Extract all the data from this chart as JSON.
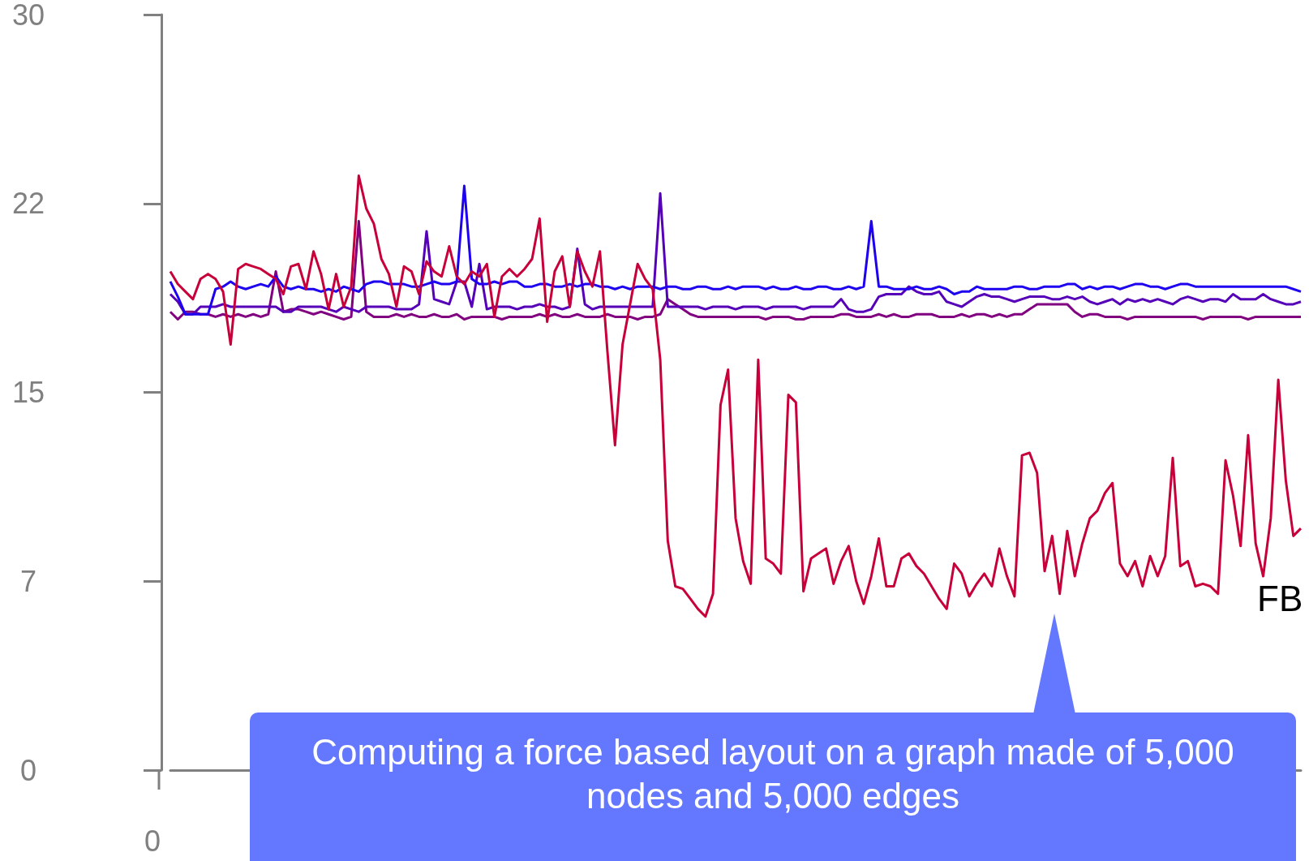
{
  "chart_data": {
    "type": "line",
    "categories": [
      null,
      null,
      null,
      null,
      null,
      null,
      null,
      null,
      null,
      null,
      null,
      null,
      null,
      null,
      null,
      null,
      null,
      null,
      null,
      null,
      null,
      null,
      null,
      null,
      null,
      null,
      null,
      null,
      null,
      null,
      null,
      null,
      null,
      null,
      null,
      null,
      null,
      null,
      null,
      null,
      null,
      null,
      null,
      null,
      null,
      null,
      null,
      null,
      null,
      null,
      null,
      null,
      null,
      null,
      null,
      null,
      null,
      null,
      null,
      null,
      null,
      null,
      null,
      null,
      null,
      null,
      null,
      null,
      null,
      null,
      null,
      null,
      null,
      null,
      null,
      null,
      null,
      null,
      null,
      null,
      null,
      null,
      null,
      null,
      null,
      null,
      null,
      null,
      null,
      null,
      null,
      null,
      null,
      null,
      null,
      null,
      null,
      null,
      null,
      null,
      null,
      null,
      null,
      null,
      null,
      null,
      null,
      null,
      null,
      null,
      null,
      null,
      null,
      null,
      null,
      null,
      null,
      null,
      null,
      null,
      null,
      null,
      null,
      null,
      null,
      null,
      null,
      null,
      null,
      null,
      null,
      null,
      null,
      null,
      null,
      null,
      null,
      null,
      null,
      null,
      null,
      null,
      null,
      null,
      null,
      null,
      null,
      null,
      null,
      null,
      null
    ],
    "ylim": [
      0,
      30
    ],
    "yticks": [
      0,
      {
        "value": 7.5,
        "label": "7"
      },
      15,
      {
        "value": 22.5,
        "label": "22"
      },
      30
    ],
    "annotations": [
      "0",
      "Computing a force based layout on a graph made of 5,000 nodes and 5,000 edges"
    ],
    "series": [
      {
        "color": "#800080",
        "values": [
          18.2,
          17.9,
          18.2,
          18.2,
          18.1,
          18.1,
          18.0,
          18.1,
          18.0,
          18.1,
          18.0,
          18.1,
          18.0,
          18.1,
          19.8,
          18.2,
          18.3,
          18.3,
          18.2,
          18.1,
          18.2,
          18.1,
          18.0,
          17.9,
          18.0,
          21.8,
          18.2,
          18.0,
          18.0,
          18.0,
          18.1,
          18.0,
          18.1,
          18.0,
          18.0,
          18.1,
          18.0,
          18.0,
          18.1,
          17.9,
          18.0,
          18.0,
          18.0,
          18.0,
          17.9,
          18.0,
          18.0,
          18.0,
          18.0,
          18.1,
          18.0,
          18.1,
          18.0,
          18.0,
          18.1,
          18.0,
          18.0,
          18.0,
          18.1,
          18.0,
          18.0,
          18.0,
          17.9,
          18.0,
          18.0,
          18.1,
          18.7,
          18.5,
          18.3,
          18.1,
          18.0,
          18.0,
          18.0,
          18.0,
          18.0,
          18.0,
          18.0,
          18.0,
          18.0,
          17.9,
          18.0,
          18.0,
          18.0,
          17.9,
          17.9,
          18.0,
          18.0,
          18.0,
          18.0,
          18.1,
          18.1,
          18.0,
          18.0,
          18.0,
          18.1,
          18.0,
          18.1,
          18.0,
          18.0,
          18.1,
          18.1,
          18.1,
          18.0,
          18.0,
          18.0,
          18.1,
          18.0,
          18.1,
          18.1,
          18.0,
          18.1,
          18.0,
          18.1,
          18.1,
          18.3,
          18.5,
          18.5,
          18.5,
          18.5,
          18.5,
          18.2,
          18.0,
          18.1,
          18.1,
          18.0,
          18.0,
          18.0,
          17.9,
          18.0,
          18.0,
          18.0,
          18.0,
          18.0,
          18.0,
          18.0,
          18.0,
          18.0,
          17.9,
          18.0,
          18.0,
          18.0,
          18.0,
          18.0,
          17.9,
          18.0,
          18.0,
          18.0,
          18.0,
          18.0,
          18.0,
          18.0
        ]
      },
      {
        "color": "#5500b8",
        "values": [
          18.9,
          18.6,
          18.1,
          18.1,
          18.4,
          18.4,
          18.4,
          18.5,
          18.4,
          18.4,
          18.4,
          18.4,
          18.4,
          18.4,
          18.4,
          18.2,
          18.2,
          18.4,
          18.4,
          18.4,
          18.4,
          18.3,
          18.2,
          18.4,
          18.3,
          18.2,
          18.4,
          18.4,
          18.4,
          18.4,
          18.3,
          18.3,
          18.3,
          18.5,
          21.4,
          18.7,
          18.6,
          18.5,
          19.4,
          19.4,
          18.4,
          20.1,
          18.3,
          18.4,
          18.4,
          18.4,
          18.3,
          18.4,
          18.4,
          18.5,
          18.4,
          18.4,
          18.3,
          18.4,
          20.7,
          18.5,
          18.3,
          18.4,
          18.4,
          18.4,
          18.4,
          18.4,
          18.4,
          18.4,
          18.4,
          22.9,
          18.4,
          18.4,
          18.4,
          18.4,
          18.4,
          18.3,
          18.4,
          18.4,
          18.4,
          18.3,
          18.4,
          18.4,
          18.4,
          18.3,
          18.4,
          18.4,
          18.4,
          18.4,
          18.3,
          18.4,
          18.4,
          18.4,
          18.4,
          18.7,
          18.3,
          18.2,
          18.2,
          18.3,
          18.8,
          18.9,
          18.9,
          18.9,
          19.2,
          19.0,
          18.9,
          18.9,
          19.0,
          18.6,
          18.5,
          18.4,
          18.6,
          18.8,
          18.9,
          18.8,
          18.8,
          18.7,
          18.6,
          18.7,
          18.8,
          18.8,
          18.8,
          18.7,
          18.7,
          18.8,
          18.7,
          18.8,
          18.6,
          18.5,
          18.6,
          18.7,
          18.5,
          18.7,
          18.6,
          18.7,
          18.6,
          18.7,
          18.6,
          18.5,
          18.7,
          18.8,
          18.7,
          18.6,
          18.7,
          18.7,
          18.6,
          18.9,
          18.7,
          18.7,
          18.7,
          18.9,
          18.7,
          18.6,
          18.5,
          18.5,
          18.6
        ]
      },
      {
        "color": "#1e00f0",
        "values": [
          19.4,
          18.8,
          18.1,
          18.1,
          18.1,
          18.1,
          19.1,
          19.2,
          19.4,
          19.2,
          19.1,
          19.2,
          19.3,
          19.2,
          19.6,
          19.2,
          19.1,
          19.2,
          19.1,
          19.1,
          19.0,
          19.1,
          19.0,
          19.2,
          19.1,
          19.0,
          19.3,
          19.4,
          19.4,
          19.3,
          19.3,
          19.3,
          19.2,
          19.2,
          19.3,
          19.4,
          19.3,
          19.3,
          19.4,
          23.2,
          19.5,
          19.3,
          19.3,
          19.4,
          19.3,
          19.4,
          19.4,
          19.2,
          19.2,
          19.3,
          19.3,
          19.2,
          19.2,
          19.3,
          19.2,
          19.3,
          19.3,
          19.2,
          19.2,
          19.1,
          19.2,
          19.1,
          19.2,
          19.2,
          19.2,
          19.1,
          19.2,
          19.2,
          19.1,
          19.1,
          19.2,
          19.2,
          19.1,
          19.1,
          19.2,
          19.1,
          19.2,
          19.2,
          19.2,
          19.1,
          19.2,
          19.1,
          19.1,
          19.2,
          19.1,
          19.1,
          19.2,
          19.2,
          19.1,
          19.1,
          19.2,
          19.1,
          19.2,
          21.8,
          19.2,
          19.2,
          19.1,
          19.1,
          19.1,
          19.2,
          19.1,
          19.1,
          19.2,
          19.1,
          18.9,
          19.0,
          19.0,
          19.2,
          19.1,
          19.1,
          19.1,
          19.1,
          19.2,
          19.2,
          19.1,
          19.1,
          19.2,
          19.2,
          19.2,
          19.3,
          19.3,
          19.1,
          19.2,
          19.1,
          19.2,
          19.2,
          19.1,
          19.2,
          19.3,
          19.3,
          19.2,
          19.2,
          19.1,
          19.2,
          19.3,
          19.3,
          19.2,
          19.2,
          19.2,
          19.2,
          19.2,
          19.2,
          19.2,
          19.2,
          19.2,
          19.2,
          19.2,
          19.2,
          19.2,
          19.1,
          19.0
        ]
      },
      {
        "name": "FB",
        "color": "#c8003a",
        "values": [
          19.8,
          19.3,
          19.0,
          18.7,
          19.5,
          19.7,
          19.5,
          19.0,
          16.9,
          19.9,
          20.1,
          20.0,
          19.9,
          19.7,
          19.5,
          18.9,
          20.0,
          20.1,
          19.1,
          20.6,
          19.7,
          18.3,
          19.7,
          18.4,
          19.2,
          23.6,
          22.3,
          21.7,
          20.3,
          19.7,
          18.4,
          20.0,
          19.8,
          18.9,
          20.2,
          19.8,
          19.6,
          20.8,
          19.6,
          19.3,
          19.8,
          19.6,
          20.1,
          18.0,
          19.6,
          19.9,
          19.6,
          19.9,
          20.3,
          21.9,
          17.8,
          19.8,
          20.4,
          18.4,
          20.6,
          19.8,
          19.2,
          20.6,
          16.6,
          12.9,
          16.9,
          18.5,
          20.1,
          19.5,
          19.1,
          16.3,
          9.1,
          7.3,
          7.2,
          6.8,
          6.4,
          6.1,
          7.0,
          14.5,
          15.9,
          10.0,
          8.3,
          7.4,
          16.3,
          8.4,
          8.2,
          7.8,
          14.9,
          14.6,
          7.1,
          8.4,
          8.6,
          8.8,
          7.4,
          8.3,
          8.9,
          7.5,
          6.6,
          7.7,
          9.2,
          7.3,
          7.3,
          8.4,
          8.6,
          8.1,
          7.8,
          7.3,
          6.8,
          6.4,
          8.2,
          7.8,
          6.9,
          7.4,
          7.8,
          7.3,
          8.8,
          7.7,
          6.9,
          12.5,
          12.6,
          11.8,
          7.9,
          9.3,
          7.0,
          9.5,
          7.7,
          9.0,
          10.0,
          10.3,
          11.0,
          11.4,
          8.2,
          7.7,
          8.3,
          7.3,
          8.5,
          7.7,
          8.5,
          12.4,
          8.1,
          8.3,
          7.3,
          7.4,
          7.3,
          7.0,
          12.3,
          10.9,
          8.9,
          13.3,
          9.0,
          7.7,
          10.0,
          15.5,
          11.5,
          9.3,
          9.6
        ]
      }
    ]
  }
}
